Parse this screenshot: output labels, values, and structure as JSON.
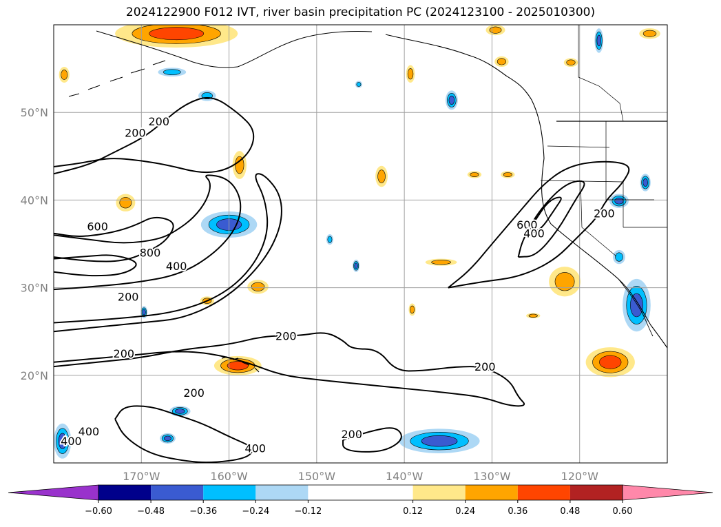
{
  "title": "2024122900 F012 IVT, river basin precipitation PC (2024123100 - 2025010300)",
  "chart_data": {
    "type": "heatmap",
    "title": "2024122900 F012 IVT, river basin precipitation PC (2024123100 - 2025010300)",
    "projection": "PlateCarree",
    "xlim": [
      -180,
      -110
    ],
    "ylim": [
      10,
      60
    ],
    "grid": true,
    "x_ticks": [
      {
        "value": -170,
        "label": "170°W"
      },
      {
        "value": -160,
        "label": "160°W"
      },
      {
        "value": -150,
        "label": "150°W"
      },
      {
        "value": -140,
        "label": "140°W"
      },
      {
        "value": -130,
        "label": "130°W"
      },
      {
        "value": -120,
        "label": "120°W"
      }
    ],
    "y_ticks": [
      {
        "value": 20,
        "label": "20°N"
      },
      {
        "value": 30,
        "label": "30°N"
      },
      {
        "value": 40,
        "label": "40°N"
      },
      {
        "value": 50,
        "label": "50°N"
      }
    ],
    "colorbar": {
      "orientation": "horizontal",
      "extend": "both",
      "levels": [
        -0.72,
        -0.6,
        -0.48,
        -0.36,
        -0.24,
        -0.12,
        0.12,
        0.24,
        0.36,
        0.48,
        0.6,
        0.72
      ],
      "colors": [
        "#9932cc",
        "#00008b",
        "#3a5bd1",
        "#00bfff",
        "#add8f5",
        "#ffffff",
        "#ffe88a",
        "#ffa500",
        "#ff4500",
        "#b22222",
        "#ff88aa"
      ],
      "tick_values": [
        -0.6,
        -0.48,
        -0.36,
        -0.24,
        -0.12,
        0.12,
        0.24,
        0.36,
        0.48,
        0.6
      ],
      "tick_labels": [
        "−0.60",
        "−0.48",
        "−0.36",
        "−0.24",
        "−0.12",
        "0.12",
        "0.24",
        "0.36",
        "0.48",
        "0.60"
      ]
    },
    "ivt_contour_labels": [
      {
        "text": "200",
        "lon": -170.7,
        "lat": 47.7
      },
      {
        "text": "200",
        "lon": -168.0,
        "lat": 49.0
      },
      {
        "text": "600",
        "lon": -175.0,
        "lat": 37.0
      },
      {
        "text": "800",
        "lon": -169.0,
        "lat": 34.0
      },
      {
        "text": "400",
        "lon": -166.0,
        "lat": 32.5
      },
      {
        "text": "200",
        "lon": -171.5,
        "lat": 29.0
      },
      {
        "text": "200",
        "lon": -172.0,
        "lat": 22.5
      },
      {
        "text": "200",
        "lon": -164.0,
        "lat": 18.0
      },
      {
        "text": "200",
        "lon": -153.5,
        "lat": 24.5
      },
      {
        "text": "200",
        "lon": -130.8,
        "lat": 21.0
      },
      {
        "text": "200",
        "lon": -146.0,
        "lat": 13.3
      },
      {
        "text": "400",
        "lon": -176.0,
        "lat": 13.6
      },
      {
        "text": "400",
        "lon": -178.0,
        "lat": 12.5
      },
      {
        "text": "400",
        "lon": -157.0,
        "lat": 11.7
      },
      {
        "text": "600",
        "lon": -126.0,
        "lat": 37.2
      },
      {
        "text": "400",
        "lon": -125.2,
        "lat": 36.2
      },
      {
        "text": "200",
        "lon": -117.2,
        "lat": 38.5
      }
    ],
    "ivt_contours": [
      {
        "level": 200,
        "points": [
          [
            -180,
            43
          ],
          [
            -176,
            44
          ],
          [
            -173,
            45.5
          ],
          [
            -170,
            47
          ],
          [
            -168,
            48.5
          ],
          [
            -165,
            51
          ],
          [
            -162,
            52
          ],
          [
            -159,
            50
          ],
          [
            -157,
            48
          ],
          [
            -157.5,
            45.5
          ],
          [
            -160,
            43.5
          ],
          [
            -163,
            43
          ],
          [
            -167,
            44
          ],
          [
            -170,
            44.5
          ],
          [
            -173,
            44.8
          ],
          [
            -175,
            44.6
          ],
          [
            -177,
            44.2
          ],
          [
            -180,
            43.8
          ]
        ]
      },
      {
        "level": 200,
        "points": [
          [
            -180,
            25
          ],
          [
            -175,
            25.5
          ],
          [
            -170,
            26
          ],
          [
            -165,
            26.5
          ],
          [
            -160,
            29
          ],
          [
            -156,
            33
          ],
          [
            -154,
            37
          ],
          [
            -154,
            40.5
          ],
          [
            -156,
            43
          ],
          [
            -157.3,
            43
          ],
          [
            -155.8,
            40
          ],
          [
            -155.5,
            36
          ],
          [
            -157.5,
            32
          ],
          [
            -161,
            29
          ],
          [
            -166,
            27.2
          ],
          [
            -172,
            26.5
          ],
          [
            -180,
            26
          ]
        ]
      },
      {
        "level": 200,
        "points": [
          [
            -180,
            21
          ],
          [
            -175,
            21.5
          ],
          [
            -170,
            22
          ],
          [
            -165,
            23
          ],
          [
            -160,
            23.5
          ],
          [
            -156,
            24.5
          ],
          [
            -152,
            24.5
          ],
          [
            -149,
            25
          ],
          [
            -147,
            24
          ],
          [
            -146,
            23
          ],
          [
            -143,
            23
          ],
          [
            -141,
            20.5
          ],
          [
            -138,
            20.5
          ],
          [
            -134,
            21
          ],
          [
            -131,
            21
          ],
          [
            -128,
            19.5
          ],
          [
            -127,
            17.5
          ],
          [
            -126,
            16.5
          ],
          [
            -128,
            16.5
          ],
          [
            -131,
            17.5
          ],
          [
            -135,
            18
          ],
          [
            -140,
            18.5
          ],
          [
            -145,
            19
          ],
          [
            -150,
            19.5
          ],
          [
            -154,
            20
          ],
          [
            -158,
            21.5
          ],
          [
            -162,
            22.5
          ],
          [
            -166,
            22.8
          ],
          [
            -172,
            22.2
          ],
          [
            -180,
            21.5
          ]
        ]
      },
      {
        "level": 200,
        "points": [
          [
            -173,
            15
          ],
          [
            -172,
            13
          ],
          [
            -169,
            11
          ],
          [
            -165,
            10.2
          ],
          [
            -162,
            10
          ],
          [
            -158,
            10.5
          ],
          [
            -157,
            11.7
          ],
          [
            -160,
            13
          ],
          [
            -163,
            14.5
          ],
          [
            -166,
            15.5
          ],
          [
            -169,
            16.5
          ],
          [
            -172,
            16.5
          ],
          [
            -173,
            15
          ]
        ]
      },
      {
        "level": 200,
        "points": [
          [
            -147,
            12.6
          ],
          [
            -144,
            13.6
          ],
          [
            -141,
            14.2
          ],
          [
            -140,
            12.8
          ],
          [
            -142,
            11.4
          ],
          [
            -145,
            11.2
          ],
          [
            -147,
            11.6
          ],
          [
            -147,
            12.6
          ]
        ]
      },
      {
        "level": 200,
        "points": [
          [
            -135,
            30
          ],
          [
            -131,
            30.7
          ],
          [
            -127,
            31.2
          ],
          [
            -123,
            33
          ],
          [
            -120,
            36
          ],
          [
            -118,
            38
          ],
          [
            -117,
            40
          ],
          [
            -115,
            42
          ],
          [
            -114,
            44
          ],
          [
            -117,
            44.5
          ],
          [
            -121,
            44
          ],
          [
            -124,
            42
          ],
          [
            -127,
            38.5
          ],
          [
            -130,
            35
          ],
          [
            -132.5,
            32
          ],
          [
            -135,
            30
          ]
        ]
      },
      {
        "level": 400,
        "points": [
          [
            -180,
            36
          ],
          [
            -176,
            35.5
          ],
          [
            -172,
            35
          ],
          [
            -168,
            35.5
          ],
          [
            -166,
            36.5
          ],
          [
            -164,
            38
          ],
          [
            -162.5,
            40
          ],
          [
            -162,
            42
          ],
          [
            -163,
            43
          ],
          [
            -160,
            42.5
          ],
          [
            -158.5,
            40
          ],
          [
            -159,
            37
          ],
          [
            -161.5,
            34
          ],
          [
            -165.5,
            31.5
          ],
          [
            -171,
            30.5
          ],
          [
            -177,
            30
          ],
          [
            -180,
            29.8
          ]
        ]
      },
      {
        "level": 400,
        "points": [
          [
            -127,
            33.5
          ],
          [
            -125,
            33.6
          ],
          [
            -122.5,
            36.5
          ],
          [
            -120.5,
            40
          ],
          [
            -119,
            42.3
          ],
          [
            -121.5,
            42
          ],
          [
            -124.5,
            39
          ],
          [
            -126.5,
            35.5
          ],
          [
            -127,
            33.5
          ]
        ]
      },
      {
        "level": 600,
        "points": [
          [
            -180,
            33.5
          ],
          [
            -176,
            33
          ],
          [
            -172,
            33
          ],
          [
            -169,
            34.2
          ],
          [
            -167,
            35.5
          ],
          [
            -166,
            37.5
          ],
          [
            -168.5,
            38.2
          ],
          [
            -170.5,
            37.2
          ],
          [
            -172.5,
            36.5
          ],
          [
            -175,
            36
          ],
          [
            -177.5,
            35.8
          ],
          [
            -180,
            36.2
          ]
        ]
      },
      {
        "level": 600,
        "points": [
          [
            -126,
            36.2
          ],
          [
            -124.5,
            36.5
          ],
          [
            -122.8,
            39
          ],
          [
            -121.8,
            40.5
          ],
          [
            -123.5,
            40
          ],
          [
            -125.2,
            37.5
          ],
          [
            -126,
            36.2
          ]
        ]
      },
      {
        "level": 800,
        "points": [
          [
            -180,
            31.8
          ],
          [
            -176,
            31.3
          ],
          [
            -172,
            31.5
          ],
          [
            -170,
            32.8
          ],
          [
            -173,
            33.8
          ],
          [
            -176,
            33.6
          ],
          [
            -180,
            33.3
          ]
        ]
      }
    ],
    "pc_regions": [
      {
        "level": 0.36,
        "lon": -166.0,
        "lat": 59.0,
        "rx": 7.0,
        "ry": 1.6
      },
      {
        "level": 0.24,
        "lon": -162.5,
        "lat": 28.5,
        "rx": 0.8,
        "ry": 0.5
      },
      {
        "level": 0.36,
        "lon": -159.0,
        "lat": 21.1,
        "rx": 2.7,
        "ry": 1.1
      },
      {
        "level": 0.24,
        "lon": -158.8,
        "lat": 44.0,
        "rx": 0.8,
        "ry": 1.6
      },
      {
        "level": 0.24,
        "lon": -171.8,
        "lat": 39.7,
        "rx": 1.1,
        "ry": 1.0
      },
      {
        "level": 0.24,
        "lon": -142.6,
        "lat": 42.7,
        "rx": 0.7,
        "ry": 1.2
      },
      {
        "level": 0.24,
        "lon": -135.8,
        "lat": 32.9,
        "rx": 1.8,
        "ry": 0.4
      },
      {
        "level": 0.24,
        "lon": -121.7,
        "lat": 30.7,
        "rx": 1.8,
        "ry": 1.7
      },
      {
        "level": 0.36,
        "lon": -116.5,
        "lat": 21.5,
        "rx": 2.8,
        "ry": 1.7
      },
      {
        "level": 0.24,
        "lon": -128.2,
        "lat": 42.9,
        "rx": 0.8,
        "ry": 0.4
      },
      {
        "level": 0.24,
        "lon": -132.0,
        "lat": 42.9,
        "rx": 0.8,
        "ry": 0.4
      },
      {
        "level": 0.24,
        "lon": -129.6,
        "lat": 59.4,
        "rx": 1.1,
        "ry": 0.6
      },
      {
        "level": 0.24,
        "lon": -128.9,
        "lat": 55.8,
        "rx": 0.8,
        "ry": 0.6
      },
      {
        "level": 0.24,
        "lon": -121.0,
        "lat": 55.7,
        "rx": 0.8,
        "ry": 0.5
      },
      {
        "level": 0.24,
        "lon": -139.3,
        "lat": 54.4,
        "rx": 0.5,
        "ry": 1.0
      },
      {
        "level": 0.24,
        "lon": -125.3,
        "lat": 26.8,
        "rx": 0.8,
        "ry": 0.3
      },
      {
        "level": 0.24,
        "lon": -139.1,
        "lat": 27.5,
        "rx": 0.4,
        "ry": 0.7
      },
      {
        "level": 0.24,
        "lon": -156.7,
        "lat": 30.1,
        "rx": 1.2,
        "ry": 0.8
      },
      {
        "level": 0.24,
        "lon": -112.0,
        "lat": 59.0,
        "rx": 1.2,
        "ry": 0.6
      },
      {
        "level": 0.24,
        "lon": -178.8,
        "lat": 54.3,
        "rx": 0.6,
        "ry": 0.9
      },
      {
        "level": -0.36,
        "lon": -160.0,
        "lat": 37.2,
        "rx": 3.2,
        "ry": 1.5
      },
      {
        "level": -0.36,
        "lon": -136.0,
        "lat": 12.5,
        "rx": 4.6,
        "ry": 1.4
      },
      {
        "level": -0.36,
        "lon": -179.0,
        "lat": 12.5,
        "rx": 1.0,
        "ry": 2.0
      },
      {
        "level": -0.36,
        "lon": -134.6,
        "lat": 51.4,
        "rx": 0.7,
        "ry": 1.1
      },
      {
        "level": -0.36,
        "lon": -113.5,
        "lat": 28.0,
        "rx": 1.6,
        "ry": 3.0
      },
      {
        "level": -0.36,
        "lon": -115.5,
        "lat": 39.9,
        "rx": 1.1,
        "ry": 0.8
      },
      {
        "level": -0.36,
        "lon": -112.5,
        "lat": 42.0,
        "rx": 0.6,
        "ry": 1.0
      },
      {
        "level": -0.36,
        "lon": -117.8,
        "lat": 58.2,
        "rx": 0.5,
        "ry": 1.4
      },
      {
        "level": -0.36,
        "lon": -167.0,
        "lat": 12.8,
        "rx": 0.9,
        "ry": 0.6
      },
      {
        "level": -0.36,
        "lon": -165.6,
        "lat": 15.9,
        "rx": 1.2,
        "ry": 0.6
      },
      {
        "level": -0.36,
        "lon": -145.5,
        "lat": 32.5,
        "rx": 0.4,
        "ry": 0.7
      },
      {
        "level": -0.36,
        "lon": -169.7,
        "lat": 27.2,
        "rx": 0.4,
        "ry": 0.7
      },
      {
        "level": -0.24,
        "lon": -162.5,
        "lat": 51.9,
        "rx": 1.0,
        "ry": 0.6
      },
      {
        "level": -0.24,
        "lon": -166.5,
        "lat": 54.6,
        "rx": 1.6,
        "ry": 0.5
      },
      {
        "level": -0.24,
        "lon": -115.5,
        "lat": 33.5,
        "rx": 0.7,
        "ry": 0.8
      },
      {
        "level": -0.24,
        "lon": -148.5,
        "lat": 35.5,
        "rx": 0.4,
        "ry": 0.6
      },
      {
        "level": -0.24,
        "lon": -145.2,
        "lat": 53.2,
        "rx": 0.4,
        "ry": 0.4
      }
    ]
  }
}
